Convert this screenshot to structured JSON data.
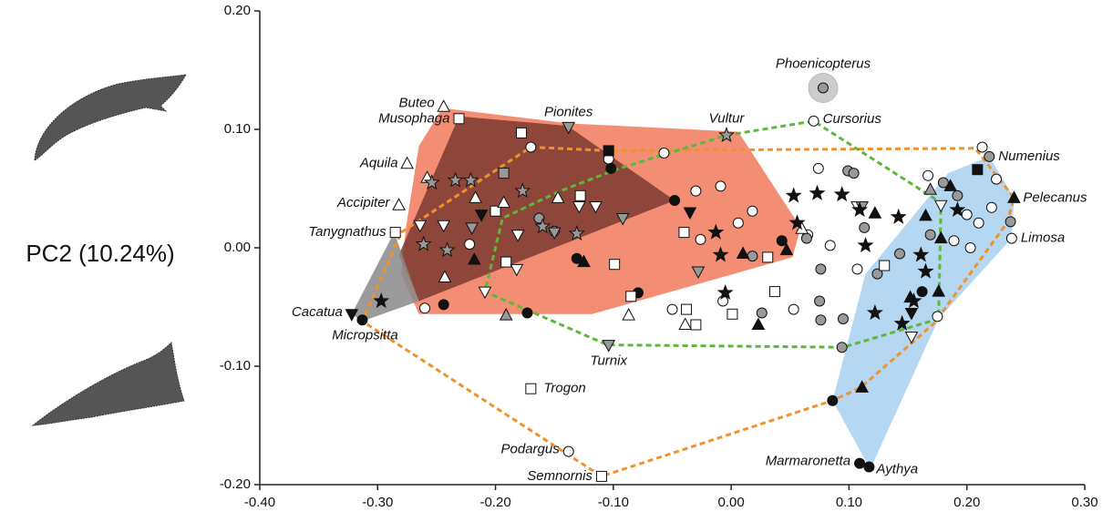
{
  "chart_data": {
    "type": "scatter",
    "ylabel": "PC2 (10.24%)",
    "xlim": [
      -0.4,
      0.3
    ],
    "ylim": [
      -0.2,
      0.2
    ],
    "xticks": [
      {
        "value": -0.4,
        "label": "-0.40"
      },
      {
        "value": -0.3,
        "label": "-0.30"
      },
      {
        "value": -0.2,
        "label": "-0.20"
      },
      {
        "value": -0.1,
        "label": "-0.10"
      },
      {
        "value": 0,
        "label": "0.00"
      },
      {
        "value": 0.1,
        "label": "0.10"
      },
      {
        "value": 0.2,
        "label": "0.20"
      },
      {
        "value": 0.3,
        "label": "0.30"
      }
    ],
    "yticks": [
      {
        "value": -0.2,
        "label": "-0.20"
      },
      {
        "value": -0.1,
        "label": "-0.10"
      },
      {
        "value": 0,
        "label": "0.00"
      },
      {
        "value": 0.1,
        "label": "0.10"
      },
      {
        "value": 0.2,
        "label": "0.20"
      }
    ],
    "hulls": [
      {
        "fill": "#f2876b",
        "x": [
          -0.245,
          -0.137,
          0.006,
          0.059,
          0.052,
          -0.118,
          -0.265,
          -0.28,
          -0.276,
          -0.265
        ],
        "y": [
          0.118,
          0.105,
          0.098,
          0.017,
          -0.008,
          -0.056,
          -0.056,
          -0.022,
          0.017,
          0.086
        ]
      },
      {
        "fill": "#7b3a30",
        "x": [
          -0.231,
          -0.139,
          -0.048,
          -0.265,
          -0.282
        ],
        "y": [
          0.111,
          0.103,
          0.04,
          -0.045,
          -0.006
        ]
      },
      {
        "fill": "#8a8a8a",
        "x": [
          -0.286,
          -0.265,
          -0.313,
          -0.322
        ],
        "y": [
          0.013,
          -0.045,
          -0.062,
          -0.056
        ]
      },
      {
        "fill": "#a8d0f0",
        "x": [
          0.184,
          0.219,
          0.24,
          0.238,
          0.176,
          0.118,
          0.086,
          0.114,
          0.153
        ],
        "y": [
          0.063,
          0.077,
          0.042,
          0.008,
          -0.06,
          -0.187,
          -0.129,
          -0.022,
          0.025
        ]
      },
      {
        "stroke": "#f0922c",
        "x": [
          -0.28,
          -0.17,
          -0.104,
          0.207,
          0.24,
          0.234,
          0.172,
          0.11,
          0.086,
          -0.11,
          -0.313
        ],
        "y": [
          0.013,
          0.085,
          0.082,
          0.084,
          0.042,
          0.021,
          -0.064,
          -0.118,
          -0.129,
          -0.193,
          -0.062
        ]
      },
      {
        "stroke": "#5cb83a",
        "x": [
          -0.004,
          0.07,
          0.178,
          0.176,
          0.095,
          -0.105,
          -0.209,
          -0.194,
          -0.145,
          -0.095
        ],
        "y": [
          0.095,
          0.107,
          0.038,
          -0.06,
          -0.084,
          -0.082,
          -0.037,
          0.025,
          0.048,
          0.067
        ]
      }
    ],
    "series": [
      {
        "marker": "circle",
        "color": "#ffffff",
        "x": [
          0.07,
          0.238,
          -0.138,
          -0.17,
          -0.104,
          -0.057,
          -0.03,
          -0.009,
          -0.026,
          0.006,
          -0.26,
          -0.222,
          0.074,
          0.167,
          0.2,
          0.221,
          0.175,
          0.053,
          0.084,
          0.107,
          0.018,
          -0.05,
          0.189,
          0.203,
          0.21,
          0.225,
          0.213,
          0.065,
          -0.007
        ],
        "y": [
          0.107,
          0.008,
          -0.172,
          0.085,
          0.075,
          0.08,
          0.048,
          0.052,
          0.007,
          0.021,
          -0.051,
          0.003,
          0.067,
          0.061,
          0.028,
          0.034,
          -0.058,
          -0.052,
          0.002,
          -0.018,
          0.031,
          -0.052,
          0.006,
          0.0,
          0.021,
          0.058,
          0.085,
          0.011,
          -0.045
        ],
        "labels": [
          "Cursorius",
          "Limosa",
          "Podargus",
          null,
          null,
          null,
          null,
          null,
          null,
          null,
          null,
          null,
          null,
          null,
          null,
          null,
          null,
          null,
          null,
          null,
          null,
          null,
          null,
          null,
          null,
          null,
          null,
          null,
          null
        ]
      },
      {
        "marker": "circle",
        "color": "#999999",
        "x": [
          0.078,
          0.219,
          -0.163,
          -0.15,
          0.018,
          0.064,
          0.099,
          0.104,
          0.18,
          0.192,
          0.075,
          0.076,
          0.095,
          0.094,
          0.076,
          0.113,
          0.124,
          0.169,
          0.237,
          0.143,
          0.026
        ],
        "y": [
          0.135,
          0.077,
          0.025,
          0.014,
          -0.007,
          0.008,
          0.065,
          0.063,
          0.055,
          0.044,
          -0.045,
          -0.061,
          -0.06,
          -0.084,
          -0.018,
          0.017,
          -0.022,
          0.011,
          0.022,
          -0.005,
          -0.055
        ],
        "labels": [
          "Phoenicopterus",
          "Numenius",
          null,
          null,
          null,
          null,
          null,
          null,
          null,
          null,
          null,
          null,
          null,
          null,
          null,
          null,
          null,
          null,
          null,
          null,
          null
        ]
      },
      {
        "marker": "circle",
        "color": "#111111",
        "x": [
          -0.313,
          0.109,
          0.117,
          -0.102,
          -0.131,
          -0.173,
          -0.244,
          -0.079,
          -0.048,
          0.043,
          0.086,
          0.162
        ],
        "y": [
          -0.061,
          -0.182,
          -0.185,
          0.067,
          -0.009,
          -0.055,
          -0.048,
          -0.038,
          0.04,
          0.006,
          -0.129,
          -0.037
        ],
        "labels": [
          "Micropsitta",
          "Marmaronetta",
          "Aythya",
          null,
          null,
          null,
          null,
          null,
          null,
          null,
          null,
          null
        ]
      },
      {
        "marker": "square",
        "color": "#ffffff",
        "x": [
          -0.231,
          -0.285,
          -0.17,
          -0.11,
          -0.178,
          -0.128,
          -0.191,
          -0.2,
          -0.085,
          -0.04,
          -0.038,
          -0.03,
          0.001,
          0.037,
          0.031,
          0.13,
          -0.099
        ],
        "y": [
          0.109,
          0.013,
          -0.119,
          -0.193,
          0.097,
          0.044,
          -0.012,
          0.031,
          -0.041,
          0.013,
          -0.052,
          -0.065,
          -0.056,
          -0.037,
          -0.008,
          -0.015,
          -0.014
        ],
        "labels": [
          "Musophaga",
          "Tanygnathus",
          "Trogon",
          "Semnornis",
          null,
          null,
          null,
          null,
          null,
          null,
          null,
          null,
          null,
          null,
          null,
          null,
          null
        ]
      },
      {
        "marker": "square",
        "color": "#111111",
        "x": [
          -0.104,
          0.209
        ],
        "y": [
          0.082,
          0.066
        ]
      },
      {
        "marker": "square",
        "color": "#999999",
        "x": [
          -0.193
        ],
        "y": [
          0.063
        ]
      },
      {
        "marker": "triangle",
        "color": "#ffffff",
        "x": [
          -0.244,
          -0.275,
          -0.282,
          -0.217,
          -0.243,
          -0.258,
          -0.193,
          -0.087,
          -0.039,
          -0.147,
          0.06
        ],
        "y": [
          0.119,
          0.071,
          0.036,
          0.042,
          -0.025,
          0.059,
          0.038,
          -0.057,
          -0.065,
          0.042,
          0.016
        ],
        "labels": [
          "Buteo",
          "Aquila",
          "Accipiter",
          null,
          null,
          null,
          null,
          null,
          null,
          null,
          null
        ]
      },
      {
        "marker": "triangle",
        "color": "#111111",
        "x": [
          0.24,
          -0.218,
          -0.125,
          0.047,
          0.122,
          0.165,
          0.178,
          0.152,
          0.01,
          0.023,
          0.111,
          0.186,
          0.176
        ],
        "y": [
          0.042,
          -0.01,
          -0.012,
          -0.002,
          0.029,
          0.027,
          0.008,
          -0.042,
          -0.005,
          -0.065,
          -0.118,
          0.052,
          -0.037
        ],
        "labels": [
          "Pelecanus",
          null,
          null,
          null,
          null,
          null,
          null,
          null,
          null,
          null,
          null,
          null,
          null
        ]
      },
      {
        "marker": "triangle",
        "color": "#999999",
        "x": [
          -0.191,
          0.169
        ],
        "y": [
          -0.057,
          0.049
        ]
      },
      {
        "marker": "triangle-down",
        "color": "#ffffff",
        "x": [
          -0.264,
          -0.244,
          -0.182,
          -0.209,
          -0.115,
          -0.181,
          0.178,
          0.153,
          -0.129,
          0.107
        ],
        "y": [
          0.019,
          0.019,
          -0.018,
          -0.037,
          0.035,
          0.011,
          0.036,
          -0.075,
          0.035,
          0.035
        ]
      },
      {
        "marker": "triangle-down",
        "color": "#999999",
        "x": [
          -0.138,
          -0.104,
          -0.22,
          -0.092,
          -0.028,
          0.111,
          -0.15
        ],
        "y": [
          0.102,
          -0.082,
          0.017,
          0.025,
          -0.02,
          0.035,
          0.013
        ],
        "labels": [
          "Pionites",
          "Turnix",
          null,
          null,
          null,
          null,
          null
        ]
      },
      {
        "marker": "triangle-down",
        "color": "#111111",
        "x": [
          -0.322,
          -0.212,
          -0.035,
          0.153
        ],
        "y": [
          -0.056,
          0.028,
          0.03,
          -0.055
        ],
        "labels": [
          "Cacatua",
          null,
          null,
          null
        ]
      },
      {
        "marker": "star",
        "color": "#111111",
        "x": [
          -0.013,
          0.053,
          0.056,
          0.073,
          0.109,
          0.114,
          0.142,
          0.161,
          0.165,
          0.155,
          0.145,
          0.192,
          -0.009,
          -0.005,
          0.094,
          0.122,
          -0.297
        ],
        "y": [
          0.013,
          0.044,
          0.021,
          0.046,
          0.032,
          0.002,
          0.026,
          -0.006,
          -0.02,
          -0.045,
          -0.064,
          0.032,
          -0.006,
          -0.038,
          0.045,
          -0.055,
          -0.045
        ]
      },
      {
        "marker": "star",
        "color": "#999999",
        "x": [
          -0.004,
          -0.254,
          -0.234,
          -0.221,
          -0.241,
          -0.261,
          -0.177,
          -0.16,
          -0.131
        ],
        "y": [
          0.095,
          0.055,
          0.057,
          0.057,
          -0.002,
          0.003,
          0.048,
          0.018,
          0.012
        ],
        "labels": [
          "Vultur",
          null,
          null,
          null,
          null,
          null,
          null,
          null,
          null
        ]
      }
    ]
  }
}
